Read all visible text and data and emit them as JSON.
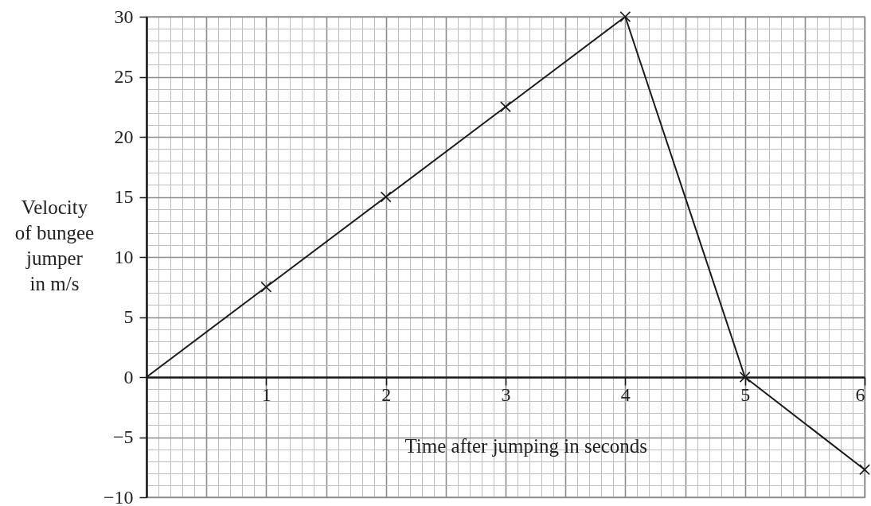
{
  "chart_data": {
    "type": "line",
    "xlabel": "Time after jumping in seconds",
    "ylabel": "Velocity of bungee jumper in m/s",
    "xlim": [
      0,
      6
    ],
    "xticks": [
      1,
      2,
      3,
      4,
      5,
      6
    ],
    "ylim": [
      -10,
      30
    ],
    "yticks": [
      -10,
      -5,
      0,
      5,
      10,
      15,
      20,
      25,
      30
    ],
    "grid": true,
    "marker": "cross",
    "series": [
      {
        "type": "scatter",
        "color": "#1a1a1a",
        "x": [
          1,
          2,
          3,
          4,
          5,
          6
        ],
        "values": [
          7.5,
          15,
          22.5,
          30,
          0,
          -7.7
        ]
      },
      {
        "color": "#1a1a1a",
        "marker": "none",
        "x": [
          0,
          1,
          2,
          3,
          4,
          5,
          6
        ],
        "values": [
          0,
          7.5,
          15,
          22.5,
          30,
          0,
          -7.7
        ]
      }
    ]
  }
}
